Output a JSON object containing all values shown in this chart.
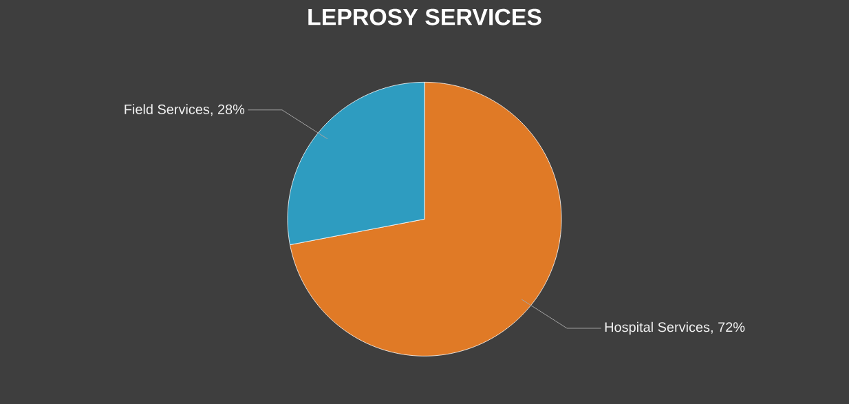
{
  "chart_data": {
    "type": "pie",
    "title": "LEPROSY SERVICES",
    "categories": [
      "Hospital Services",
      "Field Services"
    ],
    "values": [
      72,
      28
    ],
    "colors": [
      "#e07a26",
      "#2e9cc0"
    ],
    "value_labels": [
      ", 72%",
      ", 28%"
    ]
  }
}
